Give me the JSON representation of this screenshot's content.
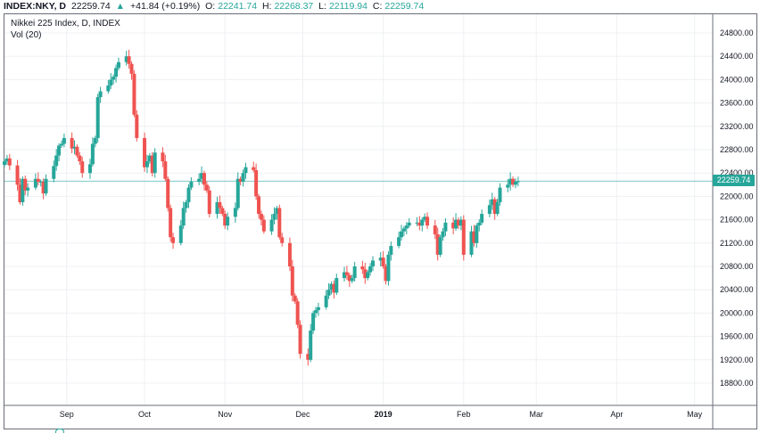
{
  "header": {
    "symbol": "INDEX:NKY, D",
    "last": "22259.74",
    "change_arrow": "▲",
    "change": "+41.84 (+0.19%)",
    "open_label": "O:",
    "open": "22241.74",
    "high_label": "H:",
    "high": "22268.37",
    "low_label": "L:",
    "low": "22119.94",
    "close_label": "C:",
    "close": "22259.74"
  },
  "legend": {
    "title": "Nikkei 225 Index, D, INDEX",
    "volume": "Vol (20)"
  },
  "last_price_tag": "22259.74",
  "colors": {
    "up": "#26a69a",
    "down": "#ef5350",
    "grid": "#eef0f3",
    "price_line": "#26a69a"
  },
  "chart_data": {
    "type": "candlestick",
    "title": "Nikkei 225 Index, D, INDEX",
    "y_ticks": [
      18800,
      19200,
      19600,
      20000,
      20400,
      20800,
      21200,
      21600,
      22000,
      22400,
      22800,
      23200,
      23600,
      24000,
      24400,
      24800
    ],
    "ylim": [
      18400,
      25000
    ],
    "x_ticks": [
      "Sep",
      "Oct",
      "Nov",
      "Dec",
      "2019",
      "Feb",
      "Mar",
      "Apr",
      "May"
    ],
    "x_range": [
      "2018-08-08",
      "2019-05-08"
    ],
    "x_tick_dates": [
      "2018-09-01",
      "2018-10-01",
      "2018-11-01",
      "2018-12-01",
      "2019-01-01",
      "2019-02-01",
      "2019-03-01",
      "2019-04-01",
      "2019-05-01"
    ],
    "last_price": 22259.74,
    "closes": [
      22600,
      22650,
      22530,
      22200,
      21900,
      22300,
      22100,
      22150,
      22300,
      22250,
      22250,
      22050,
      22300,
      22520,
      22700,
      22870,
      22900,
      23000,
      22820,
      22850,
      22700,
      22600,
      22400,
      22550,
      22900,
      23000,
      23700,
      23800,
      23900,
      24000,
      24050,
      24200,
      24300,
      24400,
      24270,
      24100,
      23400,
      23000,
      22500,
      22600,
      22700,
      22400,
      22750,
      22600,
      22300,
      21800,
      21300,
      21200,
      21500,
      21800,
      21900,
      22150,
      22250,
      22300,
      22400,
      22200,
      22100,
      21700,
      21900,
      21800,
      21700,
      21500,
      21650,
      21800,
      22300,
      22250,
      22400,
      22500,
      22450,
      22000,
      21700,
      21600,
      21400,
      21600,
      21700,
      21800,
      21300,
      21200,
      20800,
      20300,
      20200,
      19800,
      19300,
      19200,
      19700,
      20000,
      20050,
      20100,
      20300,
      20400,
      20500,
      20350,
      20600,
      20700,
      20650,
      20550,
      20600,
      20800,
      20750,
      20600,
      20700,
      20800,
      20900,
      20950,
      20800,
      20550,
      21000,
      21150,
      21300,
      21400,
      21450,
      21500,
      21550,
      21550,
      21500,
      21600,
      21650,
      21500,
      21350,
      21000,
      21300,
      21400,
      21550,
      21450,
      21600,
      21500,
      21600,
      21000,
      21400,
      21200,
      21500,
      21550,
      21700,
      21850,
      21950,
      21700,
      21900,
      22150,
      22200,
      22300,
      22200,
      22250,
      22260
    ]
  }
}
